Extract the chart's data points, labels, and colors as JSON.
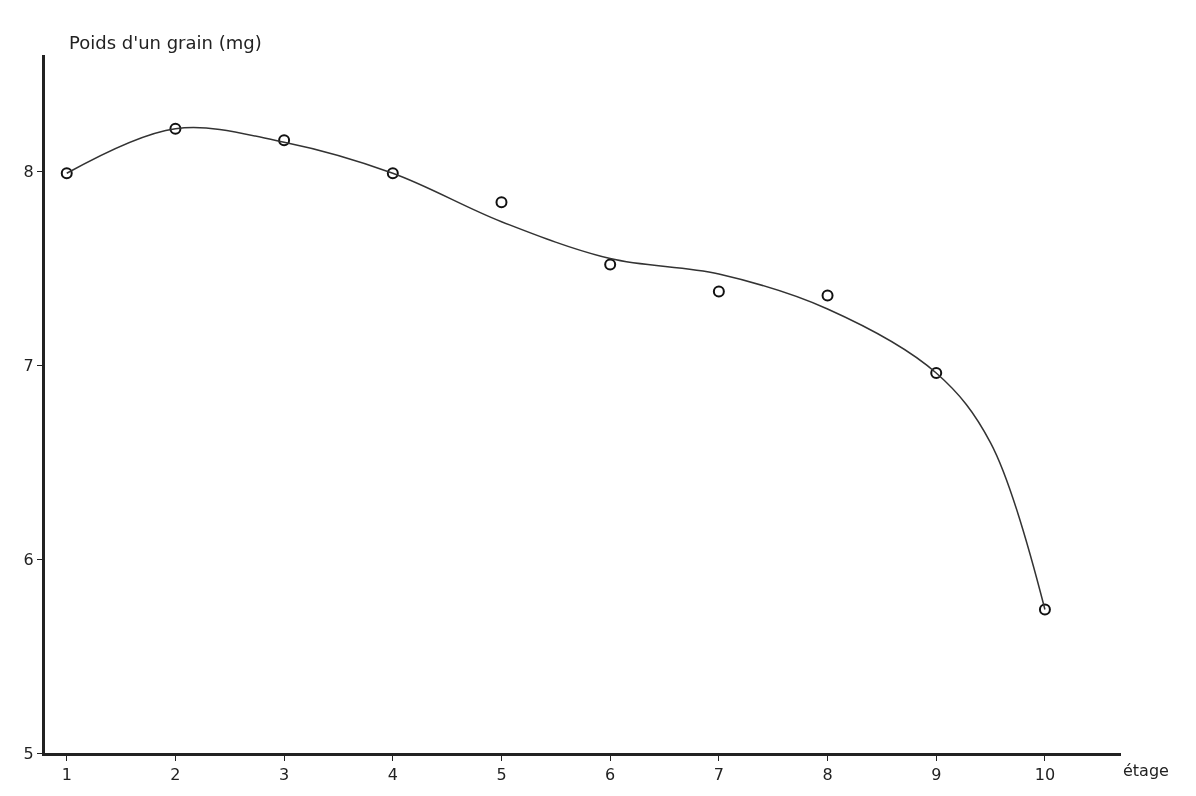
{
  "chart_data": {
    "type": "scatter",
    "ylabel": "Poids d'un grain (mg)",
    "xlabel": "étage",
    "xlim": [
      0.8,
      10.7
    ],
    "xticks": [
      1,
      2,
      3,
      4,
      5,
      6,
      7,
      8,
      9,
      10
    ],
    "ylim": [
      5,
      8.6
    ],
    "yticks": [
      5,
      6,
      7,
      8
    ],
    "marker": "circle",
    "series": [
      {
        "color": "#111111",
        "x": [
          1,
          2,
          3,
          4,
          5,
          6,
          7,
          8,
          9,
          10
        ],
        "values": [
          7.99,
          8.22,
          8.16,
          7.99,
          7.84,
          7.52,
          7.38,
          7.36,
          6.96,
          5.74
        ]
      },
      {
        "type": "line",
        "color": "#333333",
        "marker": "none",
        "line_style": "solid",
        "x": [
          1,
          2,
          3,
          4,
          5,
          6,
          7,
          8,
          9,
          9.5,
          10
        ],
        "values": [
          7.99,
          8.22,
          8.15,
          7.99,
          7.74,
          7.55,
          7.47,
          7.29,
          6.96,
          6.6,
          5.74
        ]
      }
    ]
  }
}
